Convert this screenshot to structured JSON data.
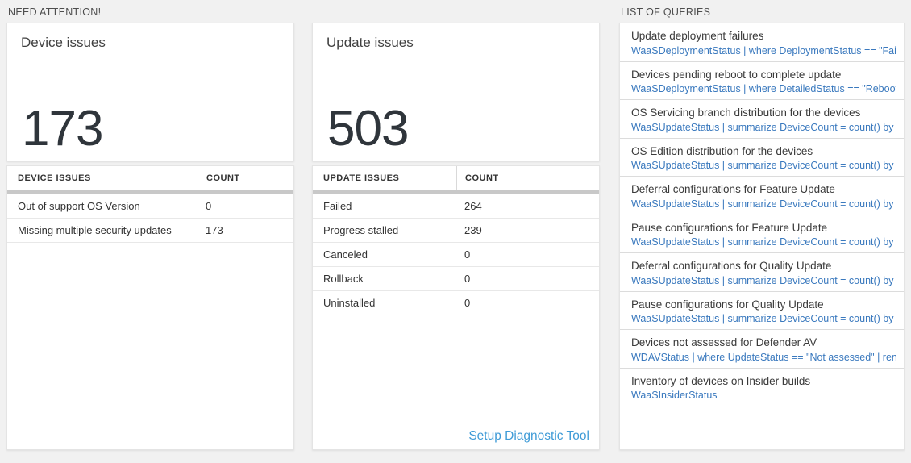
{
  "colors": {
    "page_background": "#f1f1f1",
    "panel_background": "#ffffff",
    "big_number_text": "#2f353b",
    "table_header_bar": "#c8c8c8",
    "query_link_blue": "#3a79be",
    "setup_link_blue": "#3f9bd7"
  },
  "need_attention": {
    "header": "NEED ATTENTION!",
    "device_card": {
      "title": "Device issues",
      "value": "173",
      "table": {
        "columns": [
          "DEVICE ISSUES",
          "COUNT"
        ],
        "rows": [
          {
            "label": "Out of support OS Version",
            "count": "0"
          },
          {
            "label": "Missing multiple security updates",
            "count": "173"
          }
        ]
      }
    },
    "update_card": {
      "title": "Update issues",
      "value": "503",
      "table": {
        "columns": [
          "UPDATE ISSUES",
          "COUNT"
        ],
        "rows": [
          {
            "label": "Failed",
            "count": "264"
          },
          {
            "label": "Progress stalled",
            "count": "239"
          },
          {
            "label": "Canceled",
            "count": "0"
          },
          {
            "label": "Rollback",
            "count": "0"
          },
          {
            "label": "Uninstalled",
            "count": "0"
          }
        ]
      },
      "footer_link": "Setup Diagnostic Tool"
    }
  },
  "queries": {
    "header": "LIST OF QUERIES",
    "items": [
      {
        "title": "Update deployment failures",
        "query": "WaaSDeploymentStatus | where DeploymentStatus == \"Failed\" |..."
      },
      {
        "title": "Devices pending reboot to complete update",
        "query": "WaaSDeploymentStatus | where DetailedStatus == \"Reboot pend..."
      },
      {
        "title": "OS Servicing branch distribution for the devices",
        "query": "WaaSUpdateStatus | summarize DeviceCount = count() by OSSer..."
      },
      {
        "title": "OS Edition distribution for the devices",
        "query": "WaaSUpdateStatus | summarize DeviceCount = count() by OSEdit..."
      },
      {
        "title": "Deferral configurations for Feature Update",
        "query": "WaaSUpdateStatus | summarize DeviceCount = count() by Featur..."
      },
      {
        "title": "Pause configurations for Feature Update",
        "query": "WaaSUpdateStatus | summarize DeviceCount = count() by Featur..."
      },
      {
        "title": "Deferral configurations for Quality Update",
        "query": "WaaSUpdateStatus | summarize DeviceCount = count() by Qualit..."
      },
      {
        "title": "Pause configurations for Quality Update",
        "query": "WaaSUpdateStatus | summarize DeviceCount = count() by Qualit..."
      },
      {
        "title": "Devices not assessed for Defender AV",
        "query": "WDAVStatus | where UpdateStatus == \"Not assessed\" | render ta..."
      },
      {
        "title": "Inventory of devices on Insider builds",
        "query": "WaaSInsiderStatus"
      }
    ]
  }
}
